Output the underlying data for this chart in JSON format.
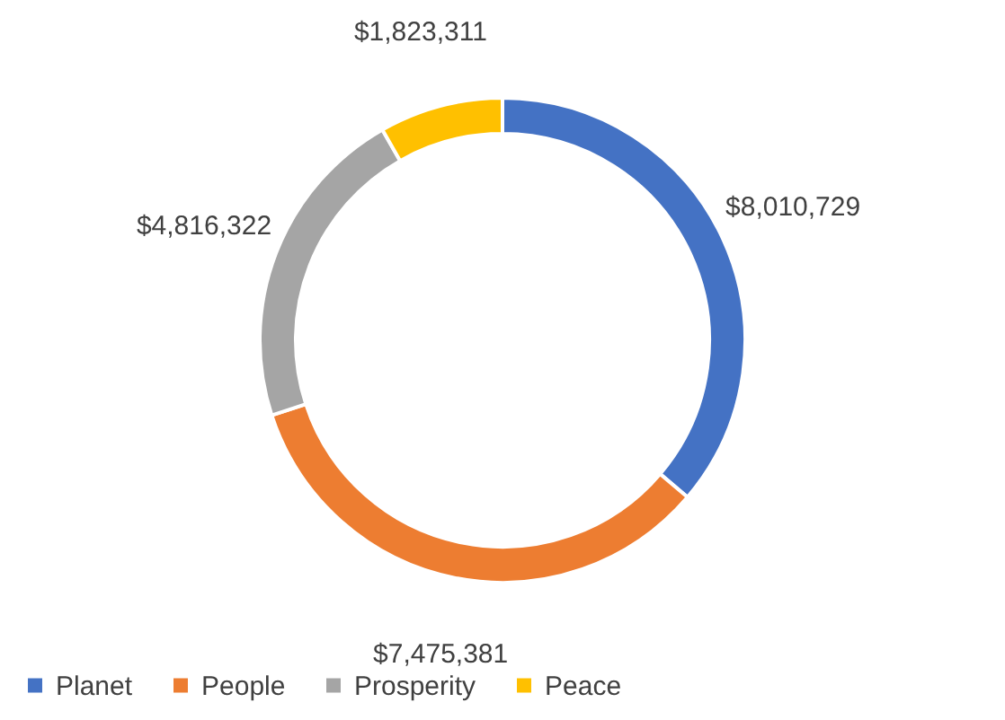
{
  "chart_data": {
    "type": "donut",
    "categories": [
      "Planet",
      "People",
      "Prosperity",
      "Peace"
    ],
    "values": [
      8010729,
      7475381,
      4816322,
      1823311
    ],
    "colors": [
      "#4472c4",
      "#ed7d31",
      "#a5a5a5",
      "#ffc000"
    ],
    "value_labels": [
      "$8,010,729",
      "$7,475,381",
      "$4,816,322",
      "$1,823,311"
    ],
    "legend": "bottom"
  }
}
